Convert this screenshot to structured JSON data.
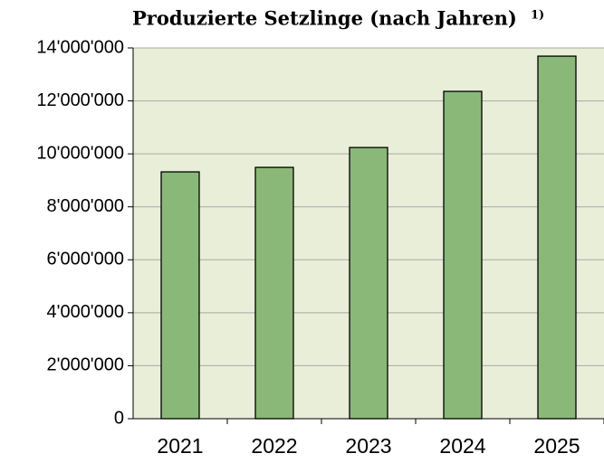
{
  "chart_data": {
    "type": "bar",
    "title": "Produzierte Setzlinge (nach Jahren)",
    "title_note": "1)",
    "categories": [
      "2021",
      "2022",
      "2023",
      "2024",
      "2025"
    ],
    "values": [
      9320000,
      9490000,
      10240000,
      12360000,
      13690000
    ],
    "color": "#8ab878",
    "ylim": [
      0,
      14000000
    ],
    "yticks": [
      0,
      {
        "value": 2000000,
        "label": "2'000'000"
      },
      {
        "value": 4000000,
        "label": "4'000'000"
      },
      {
        "value": 6000000,
        "label": "6'000'000"
      },
      {
        "value": 8000000,
        "label": "8'000'000"
      },
      {
        "value": 10000000,
        "label": "10'000'000"
      },
      {
        "value": 12000000,
        "label": "12'000'000"
      },
      {
        "value": 14000000,
        "label": "14'000'000"
      }
    ],
    "grid": true
  }
}
